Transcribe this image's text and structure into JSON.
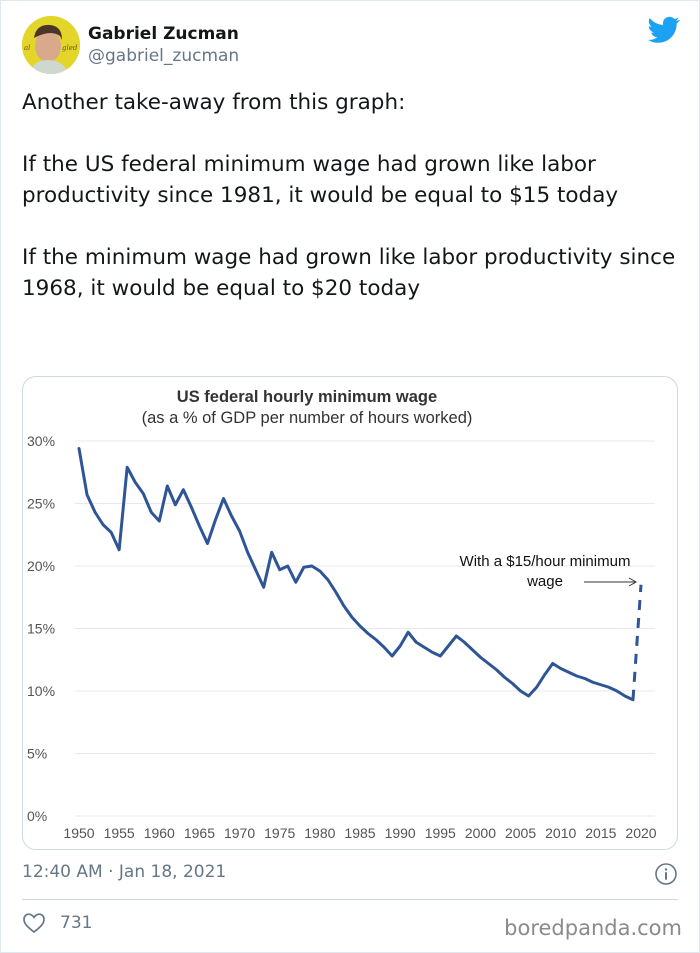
{
  "tweet": {
    "author": {
      "name": "Gabriel Zucman",
      "handle": "@gabriel_zucman"
    },
    "text": "Another take-away from this graph:\n\nIf the US federal minimum wage had grown like labor productivity since 1981, it would be equal to $15 today\n\nIf the minimum wage had grown like labor productivity since 1968, it would be equal to $20 today",
    "timestamp": "12:40 AM · Jan 18, 2021",
    "likes": "731",
    "icons": {
      "brand": "twitter-bird-icon",
      "info": "info-icon",
      "like": "heart-icon"
    },
    "colors": {
      "twitter_blue": "#1da1f2",
      "text": "#14171a",
      "secondary": "#657786",
      "line": "#2f5597"
    }
  },
  "watermark": "boredpanda.com",
  "chart_data": {
    "type": "line",
    "title": "US federal hourly minimum wage",
    "subtitle": "(as a % of GDP per number of hours worked)",
    "xlabel": "",
    "ylabel": "",
    "xlim": [
      1950,
      2020
    ],
    "ylim": [
      0,
      30
    ],
    "grid": true,
    "y_ticks": [
      "0%",
      "5%",
      "10%",
      "15%",
      "20%",
      "25%",
      "30%"
    ],
    "x_ticks": [
      "1950",
      "1955",
      "1960",
      "1965",
      "1970",
      "1975",
      "1980",
      "1985",
      "1990",
      "1995",
      "2000",
      "2005",
      "2010",
      "2015",
      "2020"
    ],
    "series": [
      {
        "name": "Minimum wage (% of GDP per hour worked)",
        "style": "solid",
        "x": [
          1950,
          1951,
          1952,
          1953,
          1954,
          1955,
          1956,
          1957,
          1958,
          1959,
          1960,
          1961,
          1962,
          1963,
          1964,
          1965,
          1966,
          1967,
          1968,
          1969,
          1970,
          1971,
          1972,
          1973,
          1974,
          1975,
          1976,
          1977,
          1978,
          1979,
          1980,
          1981,
          1982,
          1983,
          1984,
          1985,
          1986,
          1987,
          1988,
          1989,
          1990,
          1991,
          1992,
          1993,
          1994,
          1995,
          1996,
          1997,
          1998,
          1999,
          2000,
          2001,
          2002,
          2003,
          2004,
          2005,
          2006,
          2007,
          2008,
          2009,
          2010,
          2011,
          2012,
          2013,
          2014,
          2015,
          2016,
          2017,
          2018,
          2019
        ],
        "values": [
          29.4,
          25.7,
          24.3,
          23.3,
          22.7,
          21.3,
          27.9,
          26.7,
          25.8,
          24.3,
          23.6,
          26.4,
          24.9,
          26.1,
          24.7,
          23.2,
          21.8,
          23.7,
          25.4,
          24.0,
          22.8,
          21.1,
          19.7,
          18.3,
          21.1,
          19.7,
          20.0,
          18.7,
          19.9,
          20.0,
          19.6,
          18.9,
          17.9,
          16.8,
          15.9,
          15.2,
          14.6,
          14.1,
          13.5,
          12.8,
          13.6,
          14.7,
          13.9,
          13.5,
          13.1,
          12.8,
          13.6,
          14.4,
          13.9,
          13.3,
          12.7,
          12.2,
          11.7,
          11.1,
          10.6,
          10.0,
          9.6,
          10.3,
          11.3,
          12.2,
          11.8,
          11.5,
          11.2,
          11.0,
          10.7,
          10.5,
          10.3,
          10.0,
          9.6,
          9.3
        ]
      },
      {
        "name": "With a $15/hour minimum wage",
        "style": "dashed",
        "x": [
          2019,
          2020
        ],
        "values": [
          9.3,
          18.5
        ]
      }
    ],
    "annotations": [
      {
        "text_line1": "With a $15/hour minimum",
        "text_line2": "wage",
        "arrow": "right",
        "target_x": 2020,
        "target_y": 18.5
      }
    ]
  }
}
